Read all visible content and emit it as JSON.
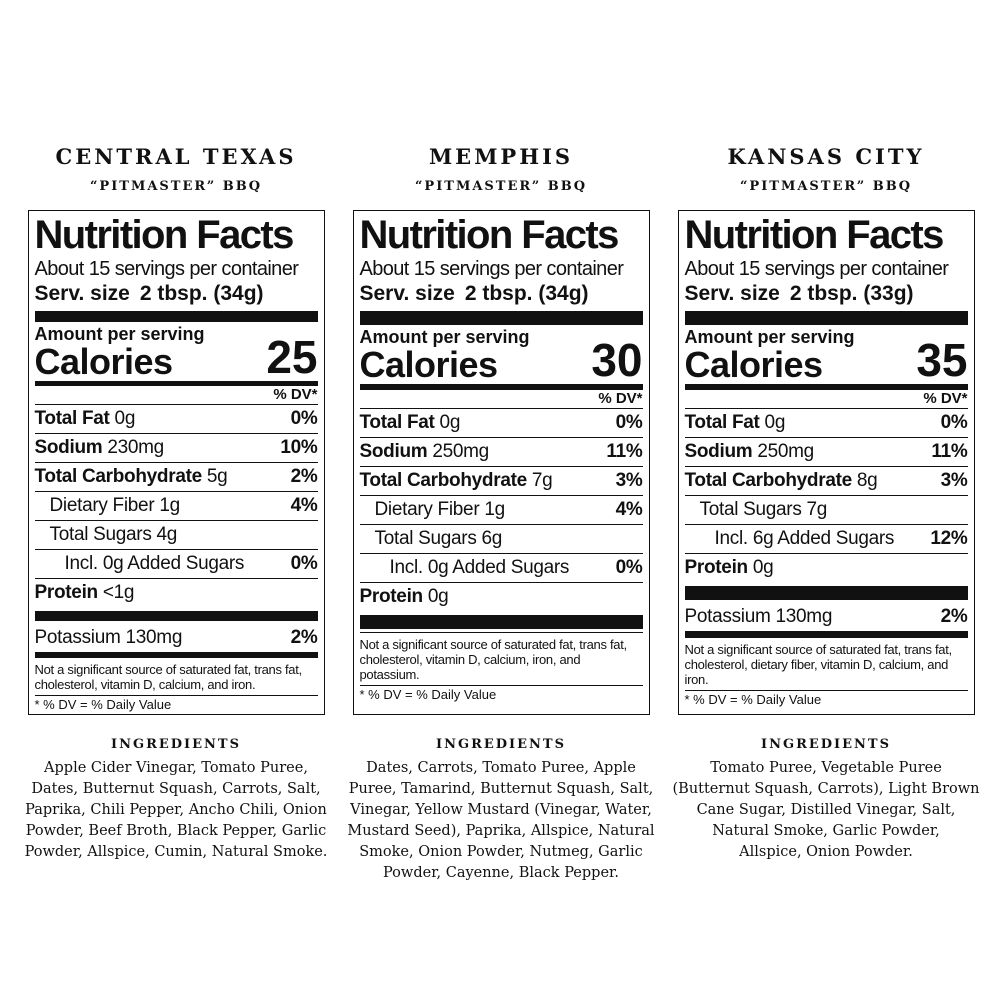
{
  "panels": [
    {
      "title": "CENTRAL TEXAS",
      "subtitle": "“PITMASTER” BBQ",
      "label": {
        "heading": "Nutrition Facts",
        "servings": "About 15 servings per container",
        "serv_size_label": "Serv. size",
        "serv_size": "2 tbsp. (34g)",
        "amount_per_serving": "Amount per serving",
        "calories_label": "Calories",
        "calories": 25,
        "dv_header": "% DV*",
        "rows": [
          {
            "name": "Total Fat",
            "amount": "0g",
            "dv": "0%",
            "bold": true,
            "indent": 0
          },
          {
            "name": "Sodium",
            "amount": "230mg",
            "dv": "10%",
            "bold": true,
            "indent": 0
          },
          {
            "name": "Total Carbohydrate",
            "amount": "5g",
            "dv": "2%",
            "bold": true,
            "indent": 0
          },
          {
            "name": "Dietary Fiber",
            "amount": "1g",
            "dv": "4%",
            "bold": false,
            "indent": 1
          },
          {
            "name": "Total Sugars",
            "amount": "4g",
            "bold": false,
            "indent": 1
          },
          {
            "name": "Incl. 0g Added Sugars",
            "dv": "0%",
            "bold": false,
            "indent": 2
          },
          {
            "name": "Protein",
            "amount": "<1g",
            "bold": true,
            "indent": 0,
            "rule_after": "thick"
          },
          {
            "name": "Potassium",
            "amount": "130mg",
            "dv": "2%",
            "bold": false,
            "indent": 0,
            "rule_after": "medium"
          }
        ],
        "footnote": "Not a significant source of saturated fat, trans fat, cholesterol, vitamin D, calcium, and iron.",
        "dv_note": "* % DV = % Daily Value"
      },
      "ingredients_heading": "INGREDIENTS",
      "ingredients": [
        "Apple Cider Vinegar, Tomato Puree,",
        "Dates, Butternut Squash, Carrots, Salt,",
        "Paprika, Chili Pepper, Ancho Chili, Onion",
        "Powder, Beef Broth, Black Pepper, Garlic",
        "Powder, Allspice, Cumin, Natural Smoke."
      ]
    },
    {
      "title": "MEMPHIS",
      "subtitle": "“PITMASTER” BBQ",
      "label": {
        "heading": "Nutrition Facts",
        "servings": "About 15 servings per container",
        "serv_size_label": "Serv. size",
        "serv_size": "2 tbsp. (34g)",
        "amount_per_serving": "Amount per serving",
        "calories_label": "Calories",
        "calories": 30,
        "dv_header": "% DV*",
        "rows": [
          {
            "name": "Total Fat",
            "amount": "0g",
            "dv": "0%",
            "bold": true,
            "indent": 0
          },
          {
            "name": "Sodium",
            "amount": "250mg",
            "dv": "11%",
            "bold": true,
            "indent": 0
          },
          {
            "name": "Total Carbohydrate",
            "amount": "7g",
            "dv": "3%",
            "bold": true,
            "indent": 0
          },
          {
            "name": "Dietary Fiber",
            "amount": "1g",
            "dv": "4%",
            "bold": false,
            "indent": 1
          },
          {
            "name": "Total Sugars",
            "amount": "6g",
            "bold": false,
            "indent": 1
          },
          {
            "name": "Incl. 0g Added Sugars",
            "dv": "0%",
            "bold": false,
            "indent": 2
          },
          {
            "name": "Protein",
            "amount": "0g",
            "bold": true,
            "indent": 0,
            "rule_after": "thick"
          }
        ],
        "footnote": "Not a significant source of saturated fat, trans fat, cholesterol, vitamin D, calcium, iron, and potassium.",
        "dv_note": "* % DV = % Daily Value"
      },
      "ingredients_heading": "INGREDIENTS",
      "ingredients": [
        "Dates, Carrots, Tomato Puree, Apple",
        "Puree, Tamarind, Butternut Squash, Salt,",
        "Vinegar, Yellow Mustard (Vinegar, Water,",
        "Mustard Seed), Paprika, Allspice, Natural",
        "Smoke, Onion Powder, Nutmeg, Garlic",
        "Powder, Cayenne, Black Pepper."
      ]
    },
    {
      "title": "KANSAS CITY",
      "subtitle": "“PITMASTER” BBQ",
      "label": {
        "heading": "Nutrition Facts",
        "servings": "About 15 servings per container",
        "serv_size_label": "Serv. size",
        "serv_size": "2 tbsp. (33g)",
        "amount_per_serving": "Amount per serving",
        "calories_label": "Calories",
        "calories": 35,
        "dv_header": "% DV*",
        "rows": [
          {
            "name": "Total Fat",
            "amount": "0g",
            "dv": "0%",
            "bold": true,
            "indent": 0
          },
          {
            "name": "Sodium",
            "amount": "250mg",
            "dv": "11%",
            "bold": true,
            "indent": 0
          },
          {
            "name": "Total Carbohydrate",
            "amount": "8g",
            "dv": "3%",
            "bold": true,
            "indent": 0
          },
          {
            "name": "Total Sugars",
            "amount": "7g",
            "bold": false,
            "indent": 1
          },
          {
            "name": "Incl. 6g Added Sugars",
            "dv": "12%",
            "bold": false,
            "indent": 2
          },
          {
            "name": "Protein",
            "amount": "0g",
            "bold": true,
            "indent": 0,
            "rule_after": "thick"
          },
          {
            "name": "Potassium",
            "amount": "130mg",
            "dv": "2%",
            "bold": false,
            "indent": 0,
            "rule_after": "medium"
          }
        ],
        "footnote": "Not a significant source of saturated fat, trans fat, cholesterol, dietary fiber, vitamin D, calcium, and iron.",
        "dv_note": "* % DV = % Daily Value"
      },
      "ingredients_heading": "INGREDIENTS",
      "ingredients": [
        "Tomato Puree, Vegetable Puree",
        "(Butternut Squash, Carrots), Light Brown",
        "Cane Sugar, Distilled Vinegar, Salt,",
        "Natural Smoke, Garlic Powder,",
        "Allspice, Onion Powder."
      ]
    }
  ]
}
